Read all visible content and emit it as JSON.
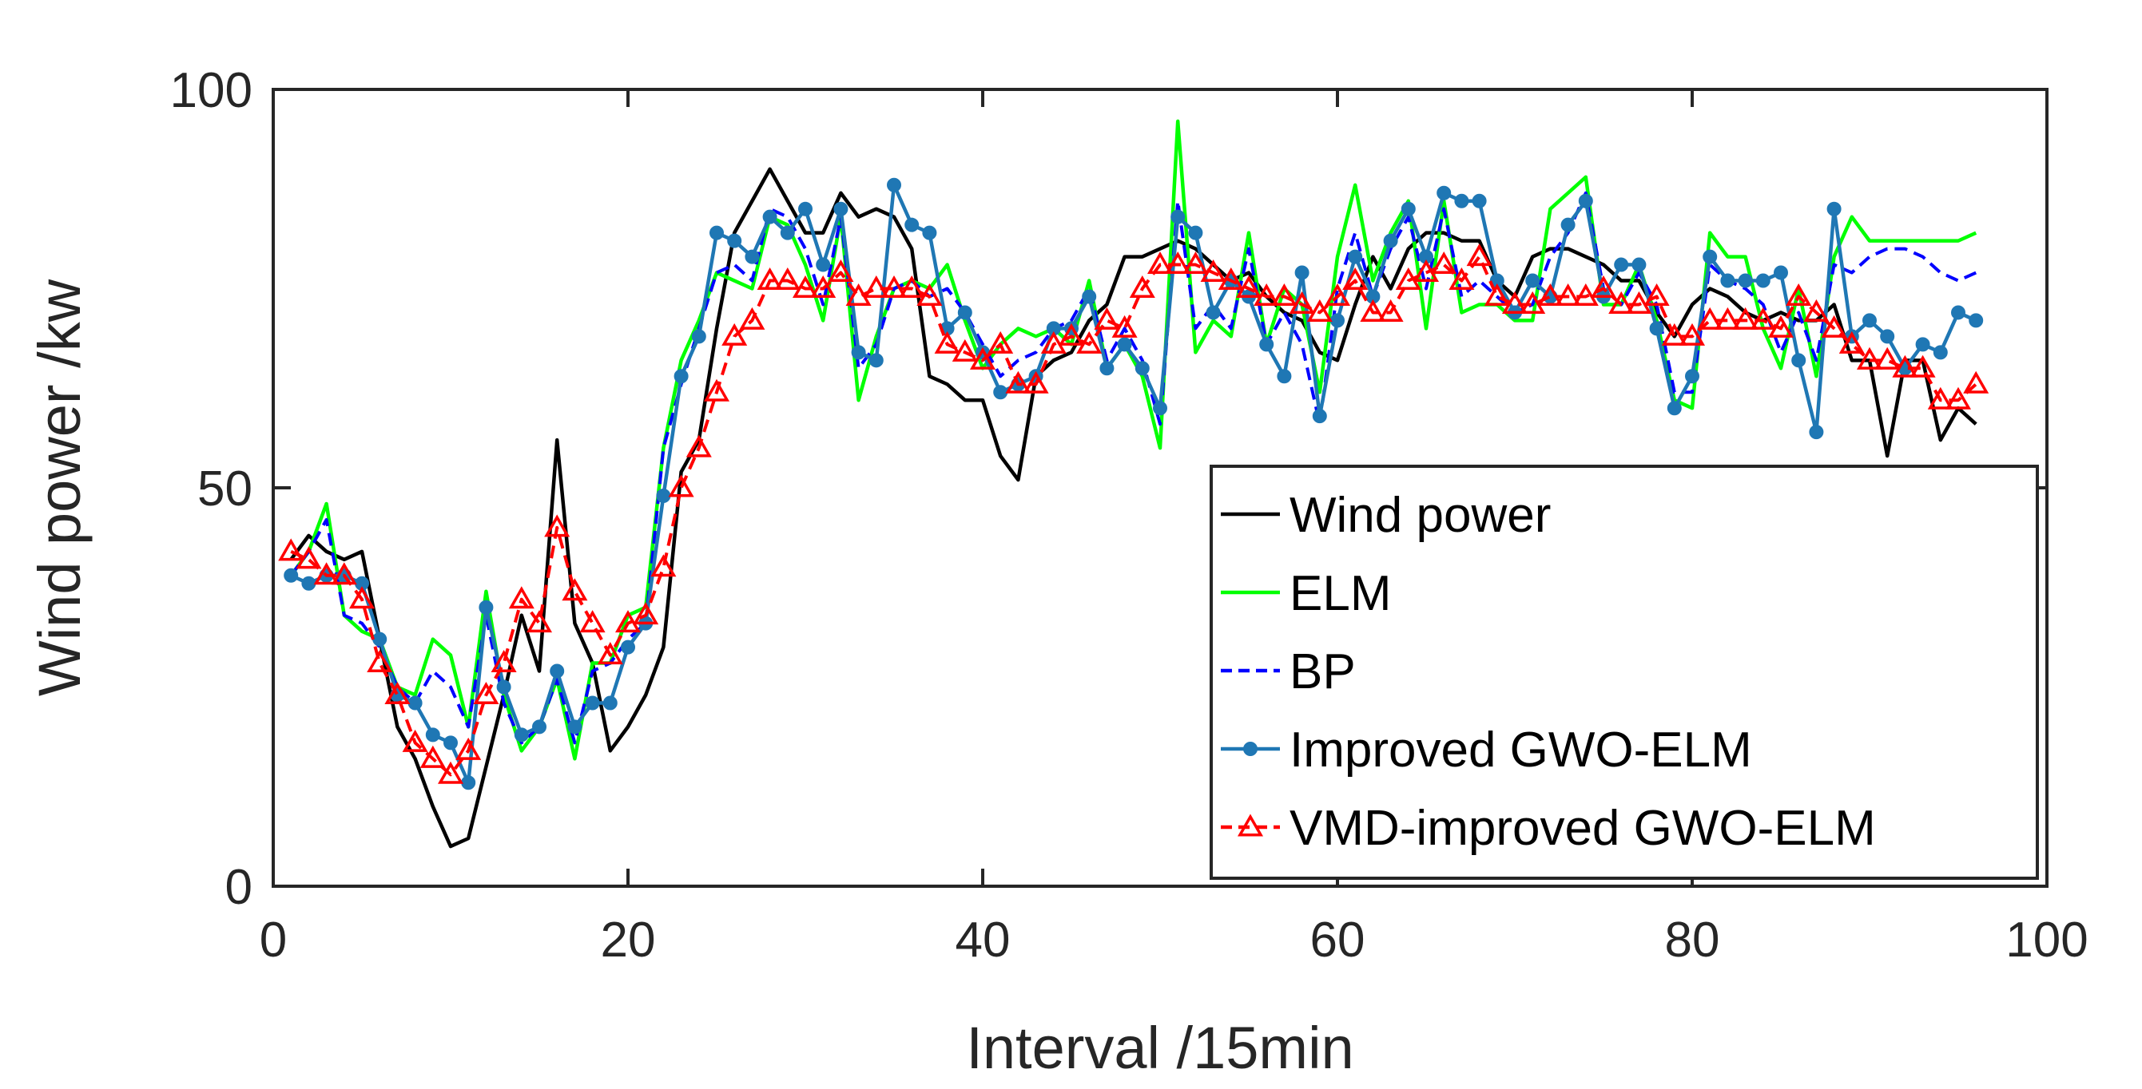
{
  "chart_data": {
    "type": "line",
    "xlabel": "Interval /15min",
    "ylabel": "Wind power /kw",
    "xlim": [
      0,
      100
    ],
    "ylim": [
      0,
      100
    ],
    "xticks": [
      "0",
      "20",
      "40",
      "60",
      "80",
      "100"
    ],
    "yticks": [
      "0",
      "50",
      "100"
    ],
    "grid": false,
    "legend_position": "bottom-right",
    "x": [
      1,
      2,
      3,
      4,
      5,
      6,
      7,
      8,
      9,
      10,
      11,
      12,
      13,
      14,
      15,
      16,
      17,
      18,
      19,
      20,
      21,
      22,
      23,
      24,
      25,
      26,
      27,
      28,
      29,
      30,
      31,
      32,
      33,
      34,
      35,
      36,
      37,
      38,
      39,
      40,
      41,
      42,
      43,
      44,
      45,
      46,
      47,
      48,
      49,
      50,
      51,
      52,
      53,
      54,
      55,
      56,
      57,
      58,
      59,
      60,
      61,
      62,
      63,
      64,
      65,
      66,
      67,
      68,
      69,
      70,
      71,
      72,
      73,
      74,
      75,
      76,
      77,
      78,
      79,
      80,
      81,
      82,
      83,
      84,
      85,
      86,
      87,
      88,
      89,
      90,
      91,
      92,
      93,
      94,
      95,
      96
    ],
    "series": [
      {
        "name": "Wind power",
        "color": "#000000",
        "dash": "solid",
        "marker": "none",
        "values": [
          41,
          44,
          42,
          41,
          42,
          31,
          20,
          16,
          10,
          5,
          6,
          15,
          24,
          34,
          27,
          56,
          33,
          28,
          17,
          20,
          24,
          30,
          52,
          56,
          70,
          82,
          86,
          90,
          86,
          82,
          82,
          87,
          84,
          85,
          84,
          80,
          64,
          63,
          61,
          61,
          54,
          51,
          64,
          66,
          67,
          71,
          73,
          79,
          79,
          80,
          81,
          80,
          78,
          76,
          77,
          74,
          72,
          71,
          67,
          66,
          73,
          79,
          75,
          80,
          82,
          82,
          81,
          81,
          76,
          74,
          79,
          80,
          80,
          79,
          78,
          76,
          76,
          72,
          69,
          73,
          75,
          74,
          72,
          71,
          72,
          71,
          71,
          73,
          66,
          66,
          54,
          66,
          66,
          56,
          60,
          58
        ]
      },
      {
        "name": "ELM",
        "color": "#00ff00",
        "dash": "solid",
        "marker": "none",
        "values": [
          39,
          42,
          48,
          34,
          32,
          31,
          25,
          24,
          31,
          29,
          20,
          37,
          24,
          17,
          20,
          26,
          16,
          28,
          28,
          34,
          35,
          55,
          66,
          71,
          77,
          76,
          75,
          84,
          83,
          78,
          71,
          84,
          61,
          69,
          75,
          76,
          75,
          78,
          71,
          65,
          68,
          70,
          69,
          70,
          68,
          76,
          65,
          68,
          64,
          55,
          96,
          67,
          71,
          69,
          82,
          68,
          75,
          73,
          62,
          79,
          88,
          76,
          82,
          86,
          70,
          86,
          72,
          73,
          73,
          71,
          71,
          85,
          87,
          89,
          73,
          73,
          78,
          71,
          61,
          60,
          82,
          79,
          79,
          70,
          65,
          75,
          64,
          79,
          84,
          81,
          81,
          81,
          81,
          81,
          81,
          82
        ]
      },
      {
        "name": "BP",
        "color": "#0000ff",
        "dash": "dash",
        "marker": "none",
        "values": [
          39,
          42,
          46,
          34,
          33,
          30,
          25,
          23,
          27,
          25,
          20,
          34,
          23,
          18,
          20,
          26,
          18,
          27,
          28,
          31,
          33,
          55,
          63,
          70,
          77,
          78,
          76,
          85,
          84,
          80,
          73,
          84,
          65,
          68,
          75,
          76,
          74,
          75,
          72,
          68,
          64,
          66,
          67,
          70,
          71,
          75,
          66,
          70,
          66,
          58,
          86,
          70,
          73,
          70,
          80,
          68,
          72,
          68,
          58,
          75,
          82,
          74,
          80,
          84,
          75,
          85,
          74,
          76,
          74,
          72,
          73,
          79,
          82,
          87,
          75,
          73,
          77,
          73,
          62,
          62,
          78,
          76,
          75,
          73,
          67,
          72,
          66,
          78,
          77,
          79,
          80,
          80,
          79,
          77,
          76,
          77
        ]
      },
      {
        "name": "Improved GWO-ELM",
        "color": "#1f77b4",
        "dash": "solid",
        "marker": "circle",
        "values": [
          39,
          38,
          39,
          39,
          38,
          31,
          24,
          23,
          19,
          18,
          13,
          35,
          25,
          19,
          20,
          27,
          20,
          23,
          23,
          30,
          33,
          49,
          64,
          69,
          82,
          81,
          79,
          84,
          82,
          85,
          78,
          85,
          67,
          66,
          88,
          83,
          82,
          70,
          72,
          67,
          62,
          63,
          64,
          70,
          70,
          74,
          65,
          68,
          65,
          60,
          84,
          82,
          72,
          76,
          74,
          68,
          64,
          77,
          59,
          71,
          79,
          74,
          81,
          85,
          79,
          87,
          86,
          86,
          76,
          72,
          76,
          74,
          83,
          86,
          74,
          78,
          78,
          70,
          60,
          64,
          79,
          76,
          76,
          76,
          77,
          66,
          57,
          85,
          69,
          71,
          69,
          65,
          68,
          67,
          72,
          71
        ]
      },
      {
        "name": "VMD-improved GWO-ELM",
        "color": "#ff0000",
        "dash": "dash",
        "marker": "triangle",
        "values": [
          42,
          41,
          39,
          39,
          36,
          28,
          24,
          18,
          16,
          14,
          17,
          24,
          28,
          36,
          33,
          45,
          37,
          33,
          29,
          33,
          34,
          40,
          50,
          55,
          62,
          69,
          71,
          76,
          76,
          75,
          75,
          77,
          74,
          75,
          75,
          75,
          74,
          68,
          67,
          66,
          68,
          63,
          63,
          68,
          69,
          68,
          71,
          70,
          75,
          78,
          78,
          78,
          77,
          76,
          75,
          74,
          74,
          73,
          72,
          74,
          76,
          72,
          72,
          76,
          77,
          78,
          76,
          79,
          74,
          73,
          73,
          74,
          74,
          74,
          75,
          73,
          73,
          74,
          69,
          69,
          71,
          71,
          71,
          71,
          70,
          74,
          72,
          70,
          68,
          66,
          66,
          65,
          65,
          61,
          61,
          63
        ]
      }
    ]
  }
}
